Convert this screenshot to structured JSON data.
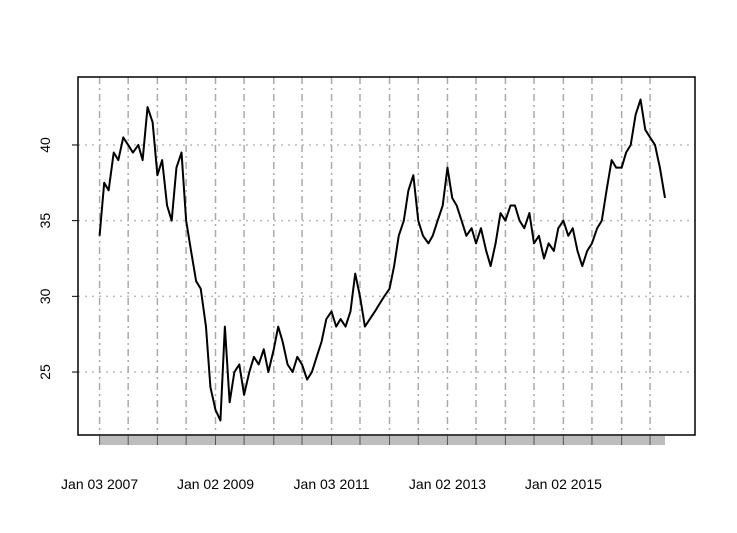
{
  "chart_data": {
    "type": "line",
    "color": "#000000",
    "grid": true,
    "x": [
      "2007-01-03",
      "2007-02-01",
      "2007-03-01",
      "2007-04-02",
      "2007-05-01",
      "2007-06-01",
      "2007-07-02",
      "2007-08-01",
      "2007-09-04",
      "2007-10-01",
      "2007-11-01",
      "2007-12-03",
      "2008-01-02",
      "2008-02-01",
      "2008-03-03",
      "2008-04-01",
      "2008-05-01",
      "2008-06-02",
      "2008-07-01",
      "2008-08-01",
      "2008-09-02",
      "2008-10-01",
      "2008-11-03",
      "2008-12-01",
      "2009-01-02",
      "2009-02-02",
      "2009-03-02",
      "2009-04-01",
      "2009-05-01",
      "2009-06-01",
      "2009-07-01",
      "2009-08-03",
      "2009-09-01",
      "2009-10-01",
      "2009-11-02",
      "2009-12-01",
      "2010-01-04",
      "2010-02-01",
      "2010-03-01",
      "2010-04-01",
      "2010-05-03",
      "2010-06-01",
      "2010-07-01",
      "2010-08-02",
      "2010-09-01",
      "2010-10-01",
      "2010-11-01",
      "2010-12-01",
      "2011-01-03",
      "2011-02-01",
      "2011-03-01",
      "2011-04-01",
      "2011-05-02",
      "2011-06-01",
      "2011-07-01",
      "2011-08-01",
      "2011-09-01",
      "2011-10-03",
      "2011-11-01",
      "2011-12-01",
      "2012-01-03",
      "2012-02-01",
      "2012-03-01",
      "2012-04-02",
      "2012-05-01",
      "2012-06-01",
      "2012-07-02",
      "2012-08-01",
      "2012-09-04",
      "2012-10-01",
      "2012-11-01",
      "2012-12-03",
      "2013-01-02",
      "2013-02-01",
      "2013-03-01",
      "2013-04-01",
      "2013-05-01",
      "2013-06-03",
      "2013-07-01",
      "2013-08-01",
      "2013-09-03",
      "2013-10-01",
      "2013-11-01",
      "2013-12-02",
      "2014-01-02",
      "2014-02-03",
      "2014-03-03",
      "2014-04-01",
      "2014-05-01",
      "2014-06-02",
      "2014-07-01",
      "2014-08-01",
      "2014-09-02",
      "2014-10-01",
      "2014-11-03",
      "2014-12-01",
      "2015-01-02",
      "2015-02-02",
      "2015-03-02",
      "2015-04-01",
      "2015-05-01",
      "2015-06-01",
      "2015-07-01",
      "2015-08-03",
      "2015-09-01",
      "2015-10-01",
      "2015-11-02",
      "2015-12-01",
      "2016-01-04",
      "2016-02-01",
      "2016-03-01",
      "2016-04-01",
      "2016-05-02",
      "2016-06-01",
      "2016-07-01",
      "2016-08-01",
      "2016-09-01",
      "2016-10-03"
    ],
    "values": [
      34,
      37.5,
      37,
      39.5,
      39,
      40.5,
      40,
      39.5,
      40,
      39,
      42.5,
      41.5,
      38,
      39,
      36,
      35,
      38.5,
      39.5,
      35,
      33,
      31,
      30.5,
      28,
      24,
      22.5,
      21.8,
      28,
      23,
      25,
      25.5,
      23.5,
      25,
      26,
      25.5,
      26.5,
      25,
      26.5,
      28,
      27,
      25.5,
      25,
      26,
      25.5,
      24.5,
      25,
      26,
      27,
      28.5,
      29,
      28,
      28.5,
      28,
      29,
      31.5,
      30,
      28,
      28.5,
      29,
      29.5,
      30,
      30.5,
      32,
      34,
      35,
      37,
      38,
      35,
      34,
      33.5,
      34,
      35,
      36,
      38.5,
      36.5,
      36,
      35,
      34,
      34.5,
      33.5,
      34.5,
      33,
      32,
      33.5,
      35.5,
      35,
      36,
      36,
      35,
      34.5,
      35.5,
      33.5,
      34,
      32.5,
      33.5,
      33,
      34.5,
      35,
      34,
      34.5,
      33,
      32,
      33,
      33.5,
      34.5,
      35,
      37,
      39,
      38.5,
      38.5,
      39.5,
      40,
      42,
      43,
      41,
      40.5,
      40,
      38.5,
      36.5
    ],
    "xlim": [
      "2006-08-20",
      "2017-04-10"
    ],
    "ylim": [
      20.84,
      44.49
    ],
    "yticks": [
      25,
      30,
      35,
      40
    ],
    "xticks": [
      {
        "value": "2007-01-03",
        "label": "Jan 03 2007"
      },
      "2007-07-02",
      "2008-01-02",
      "2008-07-01",
      {
        "value": "2009-01-02",
        "label": "Jan 02 2009"
      },
      "2009-07-01",
      "2010-01-04",
      "2010-07-01",
      {
        "value": "2011-01-03",
        "label": "Jan 03 2011"
      },
      "2011-07-01",
      "2012-01-03",
      "2012-07-02",
      {
        "value": "2013-01-02",
        "label": "Jan 02 2013"
      },
      "2013-07-01",
      "2014-01-02",
      "2014-07-01",
      {
        "value": "2015-01-02",
        "label": "Jan 02 2015"
      },
      "2015-07-01",
      "2016-01-04",
      "2016-07-01"
    ]
  }
}
